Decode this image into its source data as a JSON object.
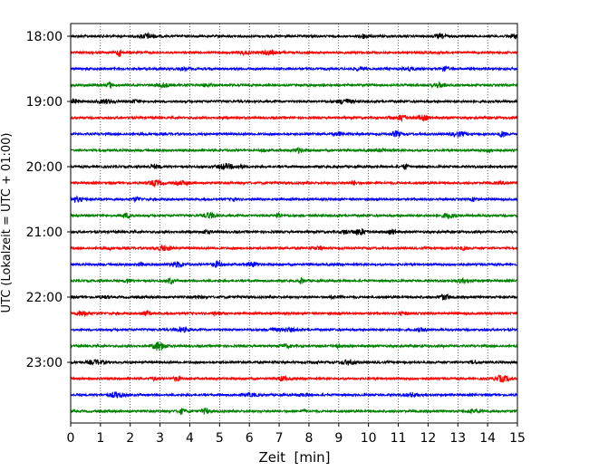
{
  "chart_data": {
    "type": "line",
    "subtype": "helicorder",
    "xlabel": "Zeit  [min]",
    "ylabel": "UTC (Lokalzeit = UTC + 01:00)",
    "xlim": [
      0,
      15
    ],
    "x_ticks": [
      0,
      1,
      2,
      3,
      4,
      5,
      6,
      7,
      8,
      9,
      10,
      11,
      12,
      13,
      14,
      15
    ],
    "x_grid": true,
    "y_ticks": [
      {
        "label": "18:00",
        "trace_index": 0
      },
      {
        "label": "19:00",
        "trace_index": 4
      },
      {
        "label": "20:00",
        "trace_index": 8
      },
      {
        "label": "21:00",
        "trace_index": 12
      },
      {
        "label": "22:00",
        "trace_index": 16
      },
      {
        "label": "23:00",
        "trace_index": 20
      }
    ],
    "trace_interval_min": 15,
    "trace_count": 24,
    "trace_colors": [
      "#000000",
      "#ff0000",
      "#0000ff",
      "#008000"
    ],
    "traces": [
      {
        "start": "18:00"
      },
      {
        "start": "18:15"
      },
      {
        "start": "18:30"
      },
      {
        "start": "18:45"
      },
      {
        "start": "19:00"
      },
      {
        "start": "19:15"
      },
      {
        "start": "19:30"
      },
      {
        "start": "19:45"
      },
      {
        "start": "20:00"
      },
      {
        "start": "20:15"
      },
      {
        "start": "20:30"
      },
      {
        "start": "20:45"
      },
      {
        "start": "21:00"
      },
      {
        "start": "21:15"
      },
      {
        "start": "21:30"
      },
      {
        "start": "21:45"
      },
      {
        "start": "22:00"
      },
      {
        "start": "22:15"
      },
      {
        "start": "22:30"
      },
      {
        "start": "22:45"
      },
      {
        "start": "23:00"
      },
      {
        "start": "23:15"
      },
      {
        "start": "23:30"
      },
      {
        "start": "23:45"
      }
    ]
  }
}
